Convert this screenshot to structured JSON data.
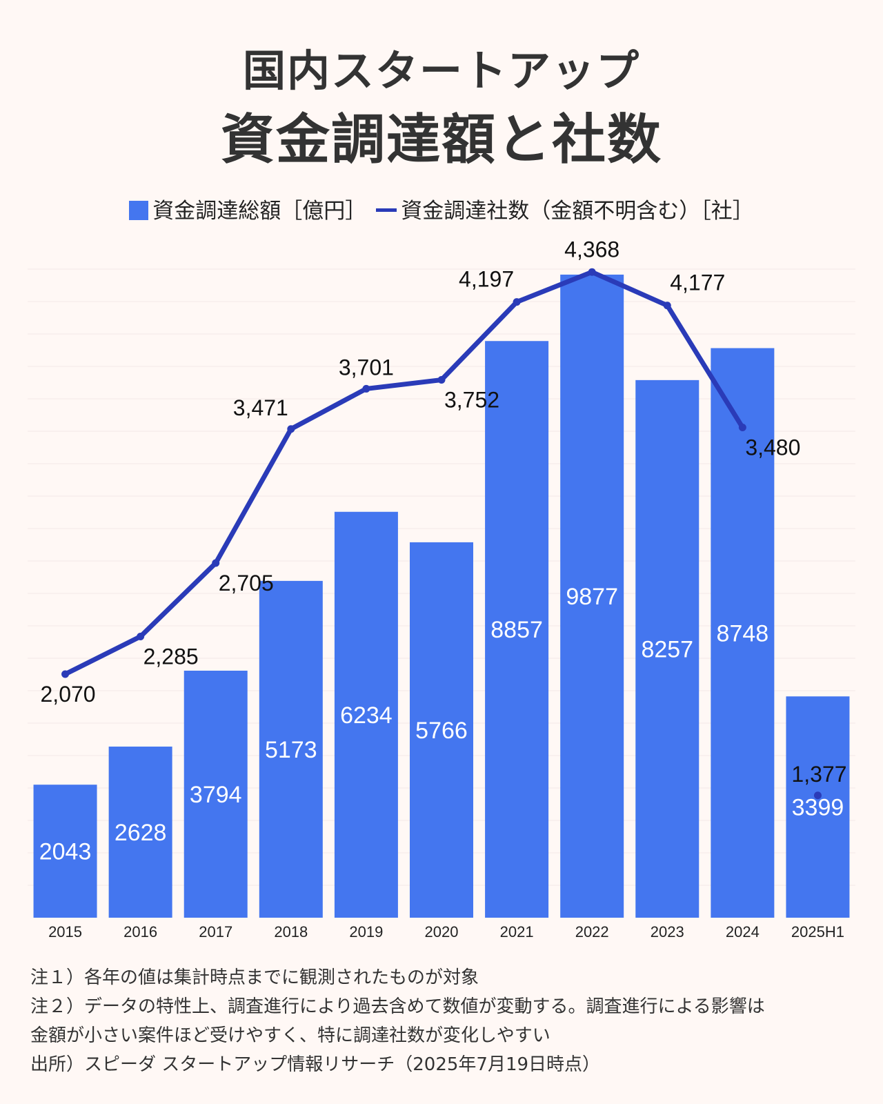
{
  "title": {
    "line1": "国内スタートアップ",
    "line2": "資金調達額と社数"
  },
  "legend": {
    "bar_label": "資金調達総額［億円］",
    "line_label": "資金調達社数（金額不明含む）［社］"
  },
  "colors": {
    "bar": "#4476ef",
    "line": "#2a3bb8",
    "background": "#fff8f5"
  },
  "chart_data": {
    "type": "bar",
    "categories": [
      "2015",
      "2016",
      "2017",
      "2018",
      "2019",
      "2020",
      "2021",
      "2022",
      "2023",
      "2024",
      "2025H1"
    ],
    "series": [
      {
        "name": "資金調達総額［億円］",
        "type": "bar",
        "values": [
          2043,
          2628,
          3794,
          5173,
          6234,
          5766,
          8857,
          9877,
          8257,
          8748,
          3399
        ],
        "labels": [
          "2043",
          "2628",
          "3794",
          "5173",
          "6234",
          "5766",
          "8857",
          "9877",
          "8257",
          "8748",
          "3399"
        ]
      },
      {
        "name": "資金調達社数（金額不明含む）［社］",
        "type": "line",
        "values": [
          2070,
          2285,
          2705,
          3471,
          3701,
          3752,
          4197,
          4368,
          4177,
          3480,
          1377
        ],
        "labels": [
          "2,070",
          "2,285",
          "2,705",
          "3,471",
          "3,701",
          "3,752",
          "4,197",
          "4,368",
          "4,177",
          "3,480",
          "1,377"
        ]
      }
    ],
    "bar_axis_range": [
      0,
      10000
    ],
    "line_axis_range": [
      0,
      4500
    ],
    "grid": true,
    "legend_position": "top"
  },
  "notes": [
    "注１）各年の値は集計時点までに観測されたものが対象",
    "注２）データの特性上、調査進行により過去含めて数値が変動する。調査進行による影響は",
    "金額が小さい案件ほど受けやすく、特に調達社数が変化しやすい",
    "出所）スピーダ スタートアップ情報リサーチ（2025年7月19日時点）"
  ]
}
